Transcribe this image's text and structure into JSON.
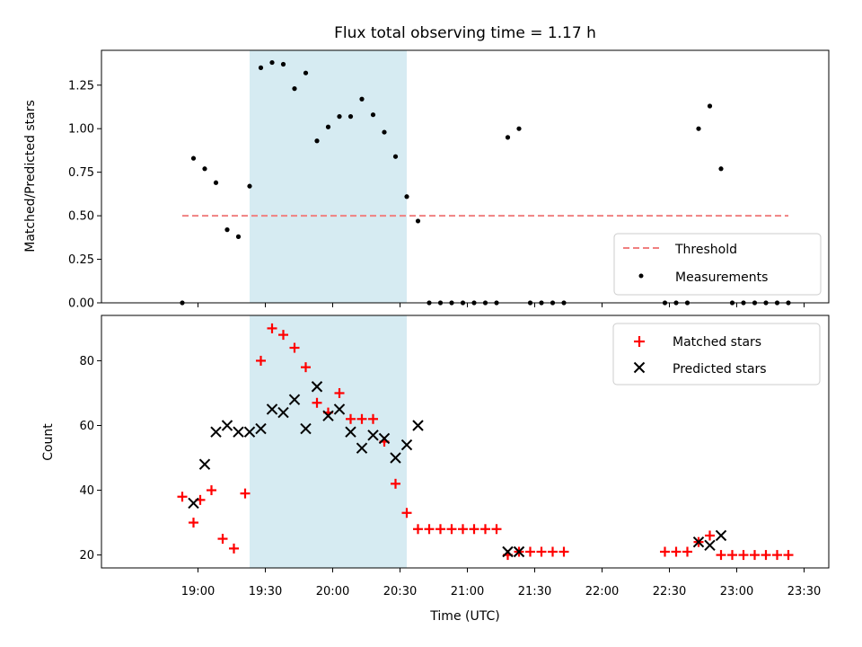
{
  "chart_data": [
    {
      "type": "scatter",
      "title": "Flux total observing time = 1.17 h",
      "xlabel": "",
      "ylabel": "Matched/Predicted stars",
      "ylim": [
        0,
        1.45
      ],
      "yticks": [
        "0.00",
        "0.25",
        "0.50",
        "0.75",
        "1.00",
        "1.25"
      ],
      "xlim_minutes_utc": [
        1097,
        1421
      ],
      "highlight_span_utc": [
        "19:23",
        "20:33"
      ],
      "highlight_color": "#add8e6",
      "legend_position": "lower right",
      "threshold": {
        "name": "Threshold",
        "value": 0.5,
        "x_range_utc": [
          "18:53",
          "23:23"
        ],
        "color": "#f08080",
        "style": "dashed"
      },
      "series": [
        {
          "name": "Measurements",
          "color": "#000000",
          "marker": "dot",
          "points": [
            [
              "18:53",
              0.0
            ],
            [
              "18:58",
              0.83
            ],
            [
              "19:03",
              0.77
            ],
            [
              "19:08",
              0.69
            ],
            [
              "19:13",
              0.42
            ],
            [
              "19:18",
              0.38
            ],
            [
              "19:23",
              0.67
            ],
            [
              "19:28",
              1.35
            ],
            [
              "19:33",
              1.38
            ],
            [
              "19:38",
              1.37
            ],
            [
              "19:43",
              1.23
            ],
            [
              "19:48",
              1.32
            ],
            [
              "19:53",
              0.93
            ],
            [
              "19:58",
              1.01
            ],
            [
              "20:03",
              1.07
            ],
            [
              "20:08",
              1.07
            ],
            [
              "20:13",
              1.17
            ],
            [
              "20:18",
              1.08
            ],
            [
              "20:23",
              0.98
            ],
            [
              "20:28",
              0.84
            ],
            [
              "20:33",
              0.61
            ],
            [
              "20:38",
              0.47
            ],
            [
              "20:43",
              0.0
            ],
            [
              "20:48",
              0.0
            ],
            [
              "20:53",
              0.0
            ],
            [
              "20:58",
              0.0
            ],
            [
              "21:03",
              0.0
            ],
            [
              "21:08",
              0.0
            ],
            [
              "21:13",
              0.0
            ],
            [
              "21:18",
              0.95
            ],
            [
              "21:23",
              1.0
            ],
            [
              "21:28",
              0.0
            ],
            [
              "21:33",
              0.0
            ],
            [
              "21:38",
              0.0
            ],
            [
              "21:43",
              0.0
            ],
            [
              "22:28",
              0.0
            ],
            [
              "22:33",
              0.0
            ],
            [
              "22:38",
              0.0
            ],
            [
              "22:43",
              1.0
            ],
            [
              "22:48",
              1.13
            ],
            [
              "22:53",
              0.77
            ],
            [
              "22:58",
              0.0
            ],
            [
              "23:03",
              0.0
            ],
            [
              "23:08",
              0.0
            ],
            [
              "23:13",
              0.0
            ],
            [
              "23:18",
              0.0
            ],
            [
              "23:23",
              0.0
            ]
          ]
        }
      ]
    },
    {
      "type": "scatter",
      "title": "",
      "xlabel": "Time (UTC)",
      "ylabel": "Count",
      "ylim": [
        16,
        94
      ],
      "yticks": [
        "20",
        "40",
        "60",
        "80"
      ],
      "xlim_minutes_utc": [
        1097,
        1421
      ],
      "xticks": [
        "19:00",
        "19:30",
        "20:00",
        "20:30",
        "21:00",
        "21:30",
        "22:00",
        "22:30",
        "23:00",
        "23:30"
      ],
      "highlight_span_utc": [
        "19:23",
        "20:33"
      ],
      "highlight_color": "#add8e6",
      "legend_position": "upper right",
      "series": [
        {
          "name": "Matched stars",
          "color": "#ff0000",
          "marker": "plus",
          "points": [
            [
              "18:53",
              38
            ],
            [
              "18:58",
              30
            ],
            [
              "19:01",
              37
            ],
            [
              "19:06",
              40
            ],
            [
              "19:11",
              25
            ],
            [
              "19:16",
              22
            ],
            [
              "19:21",
              39
            ],
            [
              "19:28",
              80
            ],
            [
              "19:33",
              90
            ],
            [
              "19:38",
              88
            ],
            [
              "19:43",
              84
            ],
            [
              "19:48",
              78
            ],
            [
              "19:53",
              67
            ],
            [
              "19:58",
              64
            ],
            [
              "20:03",
              70
            ],
            [
              "20:08",
              62
            ],
            [
              "20:13",
              62
            ],
            [
              "20:18",
              62
            ],
            [
              "20:23",
              55
            ],
            [
              "20:28",
              42
            ],
            [
              "20:33",
              33
            ],
            [
              "20:38",
              28
            ],
            [
              "20:43",
              28
            ],
            [
              "20:48",
              28
            ],
            [
              "20:53",
              28
            ],
            [
              "20:58",
              28
            ],
            [
              "21:03",
              28
            ],
            [
              "21:08",
              28
            ],
            [
              "21:13",
              28
            ],
            [
              "21:18",
              20
            ],
            [
              "21:23",
              21
            ],
            [
              "21:28",
              21
            ],
            [
              "21:33",
              21
            ],
            [
              "21:38",
              21
            ],
            [
              "21:43",
              21
            ],
            [
              "22:28",
              21
            ],
            [
              "22:33",
              21
            ],
            [
              "22:38",
              21
            ],
            [
              "22:43",
              24
            ],
            [
              "22:48",
              26
            ],
            [
              "22:53",
              20
            ],
            [
              "22:58",
              20
            ],
            [
              "23:03",
              20
            ],
            [
              "23:08",
              20
            ],
            [
              "23:13",
              20
            ],
            [
              "23:18",
              20
            ],
            [
              "23:23",
              20
            ]
          ]
        },
        {
          "name": "Predicted stars",
          "color": "#000000",
          "marker": "x",
          "points": [
            [
              "18:58",
              36
            ],
            [
              "19:03",
              48
            ],
            [
              "19:08",
              58
            ],
            [
              "19:13",
              60
            ],
            [
              "19:18",
              58
            ],
            [
              "19:23",
              58
            ],
            [
              "19:28",
              59
            ],
            [
              "19:33",
              65
            ],
            [
              "19:38",
              64
            ],
            [
              "19:43",
              68
            ],
            [
              "19:48",
              59
            ],
            [
              "19:53",
              72
            ],
            [
              "19:58",
              63
            ],
            [
              "20:03",
              65
            ],
            [
              "20:08",
              58
            ],
            [
              "20:13",
              53
            ],
            [
              "20:18",
              57
            ],
            [
              "20:23",
              56
            ],
            [
              "20:28",
              50
            ],
            [
              "20:33",
              54
            ],
            [
              "20:38",
              60
            ],
            [
              "21:18",
              21
            ],
            [
              "21:23",
              21
            ],
            [
              "22:43",
              24
            ],
            [
              "22:48",
              23
            ],
            [
              "22:53",
              26
            ]
          ]
        }
      ]
    }
  ]
}
